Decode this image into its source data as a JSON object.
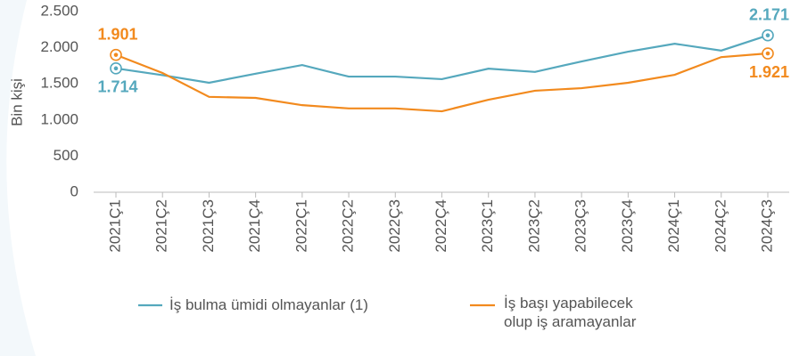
{
  "chart_data": {
    "type": "line",
    "y_label": "Bin kişi",
    "categories": [
      "2021Ç1",
      "2021Ç2",
      "2021Ç3",
      "2021Ç4",
      "2022Ç1",
      "2022Ç2",
      "2022Ç3",
      "2022Ç4",
      "2023Ç1",
      "2023Ç2",
      "2023Ç3",
      "2023Ç4",
      "2024Ç1",
      "2024Ç2",
      "2024Ç3"
    ],
    "series": [
      {
        "name": "İş bulma ümidi olmayanlar (1)",
        "color": "#55a8bd",
        "values": [
          1714,
          1620,
          1515,
          1640,
          1760,
          1600,
          1600,
          1565,
          1710,
          1665,
          1810,
          1945,
          2055,
          1960,
          2171
        ],
        "value_labels": [
          "1.714",
          null,
          null,
          null,
          null,
          null,
          null,
          null,
          null,
          null,
          null,
          null,
          null,
          null,
          "2.171"
        ]
      },
      {
        "name": "İş başı yapabilecek olup iş aramayanlar",
        "color": "#f28a1e",
        "values": [
          1901,
          1650,
          1320,
          1305,
          1205,
          1160,
          1160,
          1120,
          1280,
          1405,
          1440,
          1515,
          1625,
          1870,
          1921
        ],
        "value_labels": [
          "1.901",
          null,
          null,
          null,
          null,
          null,
          null,
          null,
          null,
          null,
          null,
          null,
          null,
          null,
          "1.921"
        ]
      }
    ],
    "ylim": [
      0,
      2500
    ],
    "yticks": [
      0,
      500,
      {
        "value": 1000,
        "label": "1.000"
      },
      {
        "value": 1500,
        "label": "1.500"
      },
      {
        "value": 2000,
        "label": "2.000"
      },
      {
        "value": 2500,
        "label": "2.500"
      }
    ]
  }
}
